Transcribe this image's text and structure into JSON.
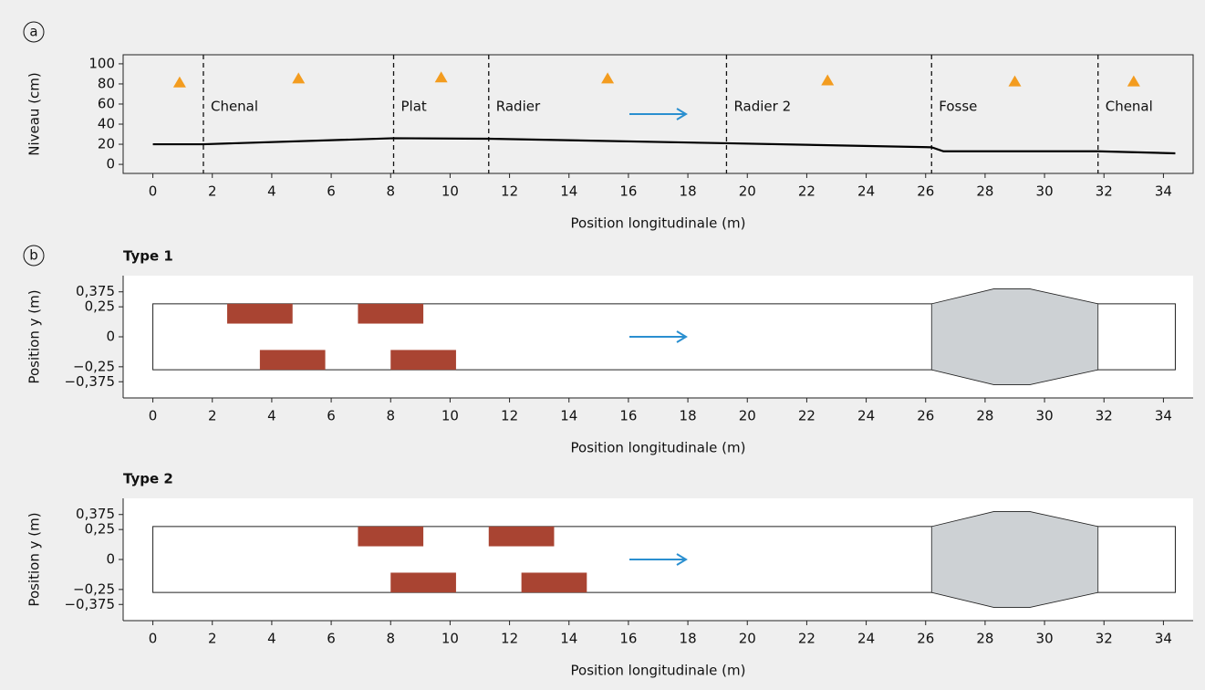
{
  "panel_labels": [
    "a",
    "b"
  ],
  "chart_data": [
    {
      "type": "line",
      "xlabel": "Position longitudinale (m)",
      "ylabel": "Niveau (cm)",
      "xlim": [
        -1,
        35
      ],
      "ylim": [
        -9,
        109
      ],
      "xticks": [
        0,
        2,
        4,
        6,
        8,
        10,
        12,
        14,
        16,
        18,
        20,
        22,
        24,
        26,
        28,
        30,
        32,
        34
      ],
      "yticks": [
        0,
        20,
        40,
        60,
        80,
        100
      ],
      "x": [
        0,
        1.7,
        8.1,
        11.3,
        19.3,
        26.2,
        26.6,
        31.8,
        34.4
      ],
      "values": [
        20,
        20,
        26,
        25.5,
        21,
        17,
        13,
        13,
        11
      ],
      "color": "#000000",
      "markers": {
        "x": [
          0.9,
          4.9,
          9.7,
          15.3,
          22.7,
          29.0,
          33.0
        ],
        "values": [
          82,
          86,
          87,
          86,
          84,
          83,
          83
        ],
        "color": "#f39c1f"
      },
      "sections": {
        "x": [
          1.7,
          8.1,
          11.3,
          19.3,
          26.2,
          31.8
        ],
        "labels": [
          "Chenal",
          "Plat",
          "Radier",
          "Radier 2",
          "Fosse",
          "Chenal"
        ]
      }
    },
    {
      "type": "plan",
      "title": "Type 1",
      "xlabel": "Position longitudinale (m)",
      "ylabel": "Position y (m)",
      "xlim": [
        -1,
        35
      ],
      "ylim": [
        -0.51,
        0.51
      ],
      "xticks": [
        0,
        2,
        4,
        6,
        8,
        10,
        12,
        14,
        16,
        18,
        20,
        22,
        24,
        26,
        28,
        30,
        32,
        34
      ],
      "yticks": [
        {
          "value": 0.375,
          "label": "0,375"
        },
        {
          "value": 0.25,
          "label": "0,25"
        },
        0,
        {
          "value": -0.25,
          "label": "−0,25"
        },
        {
          "value": -0.375,
          "label": "−0,375"
        }
      ],
      "channel": {
        "x": [
          0,
          34.4
        ],
        "y": [
          -0.275,
          0.275
        ]
      },
      "pool": {
        "x": [
          26.2,
          28.3,
          29.5,
          31.8,
          31.8,
          29.5,
          28.3,
          26.2
        ],
        "y": [
          0.275,
          0.4,
          0.4,
          0.275,
          -0.275,
          -0.4,
          -0.4,
          -0.275
        ],
        "color": "#cdd1d4"
      },
      "block_color": "#a94432",
      "blocks": [
        {
          "x": [
            2.5,
            4.7
          ],
          "y": [
            0.11,
            0.275
          ]
        },
        {
          "x": [
            6.9,
            9.1
          ],
          "y": [
            0.11,
            0.275
          ]
        },
        {
          "x": [
            3.6,
            5.8
          ],
          "y": [
            -0.275,
            -0.11
          ]
        },
        {
          "x": [
            8.0,
            10.2
          ],
          "y": [
            -0.275,
            -0.11
          ]
        }
      ]
    },
    {
      "type": "plan",
      "title": "Type 2",
      "xlabel": "Position longitudinale (m)",
      "ylabel": "Position y (m)",
      "xlim": [
        -1,
        35
      ],
      "ylim": [
        -0.51,
        0.51
      ],
      "xticks": [
        0,
        2,
        4,
        6,
        8,
        10,
        12,
        14,
        16,
        18,
        20,
        22,
        24,
        26,
        28,
        30,
        32,
        34
      ],
      "yticks": [
        {
          "value": 0.375,
          "label": "0,375"
        },
        {
          "value": 0.25,
          "label": "0,25"
        },
        0,
        {
          "value": -0.25,
          "label": "−0,25"
        },
        {
          "value": -0.375,
          "label": "−0,375"
        }
      ],
      "channel": {
        "x": [
          0,
          34.4
        ],
        "y": [
          -0.275,
          0.275
        ]
      },
      "pool": {
        "x": [
          26.2,
          28.3,
          29.5,
          31.8,
          31.8,
          29.5,
          28.3,
          26.2
        ],
        "y": [
          0.275,
          0.4,
          0.4,
          0.275,
          -0.275,
          -0.4,
          -0.4,
          -0.275
        ],
        "color": "#cdd1d4"
      },
      "block_color": "#a94432",
      "blocks": [
        {
          "x": [
            6.9,
            9.1
          ],
          "y": [
            0.11,
            0.275
          ]
        },
        {
          "x": [
            11.3,
            13.5
          ],
          "y": [
            0.11,
            0.275
          ]
        },
        {
          "x": [
            8.0,
            10.2
          ],
          "y": [
            -0.275,
            -0.11
          ]
        },
        {
          "x": [
            12.4,
            14.6
          ],
          "y": [
            -0.275,
            -0.11
          ]
        }
      ]
    }
  ]
}
